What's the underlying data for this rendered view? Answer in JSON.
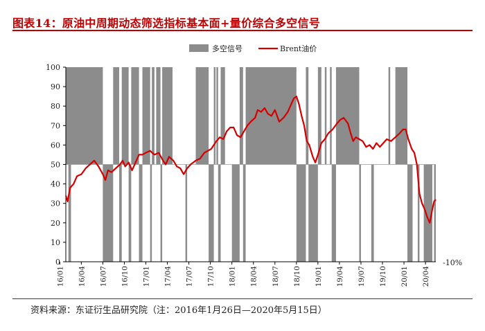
{
  "header": {
    "title": "图表14：原油中周期动态筛选指标基本面+量价综合多空信号"
  },
  "footer": {
    "source": "资料来源：东证衍生品研究院（注：2016年1月26日—2020年5月15日）"
  },
  "colors": {
    "signal": "#8c8c8c",
    "brent": "#d40000",
    "title": "#c00000"
  },
  "chart_data": {
    "type": "line",
    "title": "图表14：原油中周期动态筛选指标基本面+量价综合多空信号",
    "legend": {
      "position": "top",
      "entries": [
        "多空信号",
        "Brent油价"
      ]
    },
    "ylim": [
      0,
      100
    ],
    "y_ticks": [
      0,
      10,
      20,
      30,
      40,
      50,
      60,
      70,
      80,
      90,
      100
    ],
    "y_extra_label": "-10%",
    "x_range": [
      2016.07,
      2020.37
    ],
    "x_ticks": [
      {
        "label": "16/01",
        "t": 2016.0
      },
      {
        "label": "16/04",
        "t": 2016.25
      },
      {
        "label": "16/07",
        "t": 2016.5
      },
      {
        "label": "16/10",
        "t": 2016.75
      },
      {
        "label": "17/01",
        "t": 2017.0
      },
      {
        "label": "17/04",
        "t": 2017.25
      },
      {
        "label": "17/07",
        "t": 2017.5
      },
      {
        "label": "17/10",
        "t": 2017.75
      },
      {
        "label": "18/01",
        "t": 2018.0
      },
      {
        "label": "18/04",
        "t": 2018.25
      },
      {
        "label": "18/07",
        "t": 2018.5
      },
      {
        "label": "18/10",
        "t": 2018.75
      },
      {
        "label": "19/01",
        "t": 2019.0
      },
      {
        "label": "19/04",
        "t": 2019.25
      },
      {
        "label": "19/07",
        "t": 2019.5
      },
      {
        "label": "19/10",
        "t": 2019.75
      },
      {
        "label": "20/01",
        "t": 2020.0
      },
      {
        "label": "20/04",
        "t": 2020.25
      }
    ],
    "series": [
      {
        "name": "多空信号",
        "type": "bar",
        "note": "long signal fills 50→100, short signal fills 0→50",
        "long_periods": [
          [
            2016.07,
            2016.5
          ],
          [
            2016.62,
            2016.69
          ],
          [
            2016.72,
            2016.8
          ],
          [
            2016.83,
            2016.92
          ],
          [
            2016.96,
            2017.05
          ],
          [
            2017.07,
            2017.1
          ],
          [
            2017.12,
            2017.17
          ],
          [
            2017.19,
            2017.31
          ],
          [
            2017.58,
            2017.73
          ],
          [
            2017.79,
            2017.81
          ],
          [
            2017.82,
            2017.84
          ],
          [
            2017.87,
            2017.92
          ],
          [
            2018.09,
            2018.13
          ],
          [
            2018.16,
            2018.75
          ],
          [
            2018.86,
            2018.89
          ],
          [
            2019.0,
            2019.04
          ],
          [
            2019.08,
            2019.1
          ],
          [
            2019.14,
            2019.16
          ],
          [
            2019.21,
            2019.48
          ],
          [
            2019.82,
            2019.84
          ],
          [
            2019.9,
            2020.04
          ]
        ],
        "short_periods": [
          [
            2016.1,
            2016.13
          ],
          [
            2016.5,
            2016.62
          ],
          [
            2016.69,
            2016.72
          ],
          [
            2016.8,
            2016.83
          ],
          [
            2016.92,
            2016.96
          ],
          [
            2017.05,
            2017.07
          ],
          [
            2017.17,
            2017.19
          ],
          [
            2017.46,
            2017.48
          ],
          [
            2017.73,
            2017.79
          ],
          [
            2017.84,
            2017.87
          ],
          [
            2018.0,
            2018.09
          ],
          [
            2018.13,
            2018.16
          ],
          [
            2018.75,
            2018.86
          ],
          [
            2018.89,
            2019.0
          ],
          [
            2019.16,
            2019.21
          ],
          [
            2019.48,
            2019.5
          ],
          [
            2019.62,
            2019.65
          ],
          [
            2020.04,
            2020.1
          ],
          [
            2020.16,
            2020.18
          ],
          [
            2020.23,
            2020.33
          ],
          [
            2020.35,
            2020.37
          ]
        ]
      },
      {
        "name": "Brent油价",
        "type": "line",
        "points": [
          [
            2016.07,
            34
          ],
          [
            2016.09,
            31
          ],
          [
            2016.12,
            38
          ],
          [
            2016.16,
            40
          ],
          [
            2016.2,
            44
          ],
          [
            2016.25,
            45
          ],
          [
            2016.3,
            48
          ],
          [
            2016.35,
            50
          ],
          [
            2016.4,
            52
          ],
          [
            2016.45,
            49
          ],
          [
            2016.5,
            45
          ],
          [
            2016.53,
            42
          ],
          [
            2016.56,
            47
          ],
          [
            2016.6,
            46
          ],
          [
            2016.65,
            48
          ],
          [
            2016.7,
            50
          ],
          [
            2016.73,
            52
          ],
          [
            2016.76,
            49
          ],
          [
            2016.8,
            51
          ],
          [
            2016.84,
            47
          ],
          [
            2016.88,
            51
          ],
          [
            2016.92,
            55
          ],
          [
            2016.96,
            55
          ],
          [
            2017.0,
            56
          ],
          [
            2017.05,
            57
          ],
          [
            2017.1,
            55
          ],
          [
            2017.15,
            56
          ],
          [
            2017.2,
            52
          ],
          [
            2017.23,
            50
          ],
          [
            2017.27,
            54
          ],
          [
            2017.32,
            52
          ],
          [
            2017.36,
            49
          ],
          [
            2017.4,
            48
          ],
          [
            2017.44,
            45
          ],
          [
            2017.48,
            48
          ],
          [
            2017.52,
            50
          ],
          [
            2017.58,
            52
          ],
          [
            2017.63,
            53
          ],
          [
            2017.68,
            56
          ],
          [
            2017.72,
            57
          ],
          [
            2017.76,
            58
          ],
          [
            2017.82,
            62
          ],
          [
            2017.86,
            64
          ],
          [
            2017.9,
            63
          ],
          [
            2017.94,
            67
          ],
          [
            2017.98,
            69
          ],
          [
            2018.02,
            69
          ],
          [
            2018.06,
            65
          ],
          [
            2018.1,
            64
          ],
          [
            2018.14,
            67
          ],
          [
            2018.18,
            70
          ],
          [
            2018.22,
            72
          ],
          [
            2018.27,
            74
          ],
          [
            2018.3,
            78
          ],
          [
            2018.34,
            77
          ],
          [
            2018.38,
            79
          ],
          [
            2018.42,
            76
          ],
          [
            2018.46,
            75
          ],
          [
            2018.5,
            78
          ],
          [
            2018.55,
            72
          ],
          [
            2018.6,
            74
          ],
          [
            2018.65,
            77
          ],
          [
            2018.68,
            80
          ],
          [
            2018.72,
            84
          ],
          [
            2018.75,
            85
          ],
          [
            2018.78,
            81
          ],
          [
            2018.81,
            75
          ],
          [
            2018.84,
            70
          ],
          [
            2018.87,
            62
          ],
          [
            2018.9,
            60
          ],
          [
            2018.94,
            54
          ],
          [
            2018.97,
            51
          ],
          [
            2019.0,
            55
          ],
          [
            2019.04,
            61
          ],
          [
            2019.08,
            63
          ],
          [
            2019.12,
            66
          ],
          [
            2019.17,
            68
          ],
          [
            2019.22,
            71
          ],
          [
            2019.26,
            73
          ],
          [
            2019.3,
            74
          ],
          [
            2019.35,
            71
          ],
          [
            2019.38,
            66
          ],
          [
            2019.41,
            62
          ],
          [
            2019.44,
            64
          ],
          [
            2019.48,
            63
          ],
          [
            2019.52,
            62
          ],
          [
            2019.56,
            59
          ],
          [
            2019.6,
            60
          ],
          [
            2019.64,
            58
          ],
          [
            2019.68,
            61
          ],
          [
            2019.72,
            59
          ],
          [
            2019.76,
            61
          ],
          [
            2019.8,
            63
          ],
          [
            2019.85,
            62
          ],
          [
            2019.9,
            64
          ],
          [
            2019.95,
            66
          ],
          [
            2019.99,
            68
          ],
          [
            2020.02,
            68
          ],
          [
            2020.05,
            63
          ],
          [
            2020.09,
            58
          ],
          [
            2020.12,
            56
          ],
          [
            2020.15,
            50
          ],
          [
            2020.18,
            35
          ],
          [
            2020.21,
            30
          ],
          [
            2020.24,
            27
          ],
          [
            2020.27,
            23
          ],
          [
            2020.3,
            20
          ],
          [
            2020.33,
            27
          ],
          [
            2020.35,
            31
          ],
          [
            2020.37,
            32
          ]
        ]
      }
    ]
  }
}
